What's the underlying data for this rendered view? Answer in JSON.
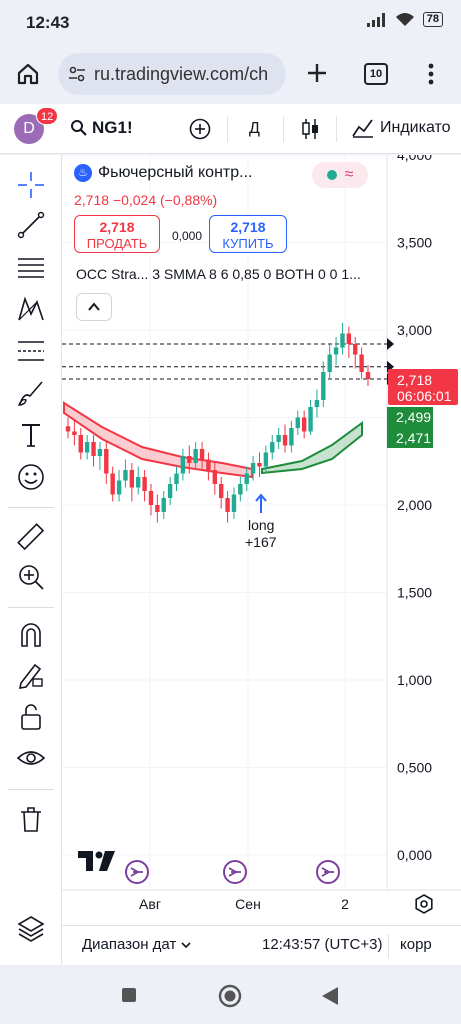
{
  "status": {
    "time": "12:43",
    "battery": "78"
  },
  "browser": {
    "url": "ru.tradingview.com/ch",
    "tab_count": "10"
  },
  "header": {
    "avatar_letter": "D",
    "notifications": "12",
    "symbol": "NG1!",
    "timeframe": "Д",
    "indicators_label": "Индикато"
  },
  "legend": {
    "title": "Фьючерсный контр...",
    "change": "2,718  −0,024 (−0,88%)",
    "sell_price": "2,718",
    "sell_label": "ПРОДАТЬ",
    "spread": "0,000",
    "buy_price": "2,718",
    "buy_label": "КУПИТЬ",
    "indicator": "OCC Stra...   3 SMMA 8 6 0,85 0 BOTH 0 0 1..."
  },
  "price_axis": {
    "ticks": [
      "4,000",
      "3,500",
      "3,000",
      "2,500",
      "2,000",
      "1,500",
      "1,000",
      "0,500",
      "0,000"
    ],
    "last_price": "2,718",
    "countdown": "06:06:01",
    "ind_upper": "2,499",
    "ind_lower": "2,471"
  },
  "time_axis": {
    "ticks": [
      "Авг",
      "Сен",
      "2"
    ]
  },
  "signal": {
    "label": "long",
    "value": "+167"
  },
  "bottom": {
    "date_range": "Диапазон дат",
    "clock": "12:43:57 (UTC+3)",
    "corr": "корр"
  },
  "colors": {
    "up": "#22ab94",
    "down": "#f23645",
    "accent": "#2962ff",
    "band_red": "#f23645",
    "band_green": "#1e8c3a"
  },
  "chart_data": {
    "type": "candlestick",
    "ylim": [
      0,
      4.0
    ],
    "y_ticks": [
      4.0,
      3.5,
      3.0,
      2.5,
      2.0,
      1.5,
      1.0,
      0.5,
      0.0
    ],
    "x_ticks": [
      "Авг",
      "Сен",
      "2"
    ],
    "candles": [
      [
        2.45,
        2.42,
        2.5,
        2.38
      ],
      [
        2.42,
        2.4,
        2.48,
        2.34
      ],
      [
        2.4,
        2.3,
        2.44,
        2.26
      ],
      [
        2.3,
        2.36,
        2.4,
        2.26
      ],
      [
        2.36,
        2.28,
        2.4,
        2.22
      ],
      [
        2.28,
        2.32,
        2.36,
        2.2
      ],
      [
        2.32,
        2.18,
        2.36,
        2.12
      ],
      [
        2.18,
        2.06,
        2.22,
        2.02
      ],
      [
        2.06,
        2.14,
        2.2,
        2.02
      ],
      [
        2.14,
        2.2,
        2.26,
        2.1
      ],
      [
        2.2,
        2.1,
        2.24,
        2.02
      ],
      [
        2.1,
        2.16,
        2.22,
        2.06
      ],
      [
        2.16,
        2.08,
        2.2,
        2.02
      ],
      [
        2.08,
        2.0,
        2.12,
        1.94
      ],
      [
        2.0,
        1.96,
        2.06,
        1.9
      ],
      [
        1.96,
        2.04,
        2.08,
        1.92
      ],
      [
        2.04,
        2.12,
        2.16,
        2.0
      ],
      [
        2.12,
        2.18,
        2.22,
        2.08
      ],
      [
        2.18,
        2.28,
        2.32,
        2.14
      ],
      [
        2.28,
        2.24,
        2.34,
        2.18
      ],
      [
        2.24,
        2.32,
        2.36,
        2.2
      ],
      [
        2.32,
        2.26,
        2.36,
        2.2
      ],
      [
        2.26,
        2.2,
        2.3,
        2.14
      ],
      [
        2.2,
        2.12,
        2.24,
        2.06
      ],
      [
        2.12,
        2.04,
        2.16,
        1.98
      ],
      [
        2.04,
        1.96,
        2.08,
        1.9
      ],
      [
        1.96,
        2.06,
        2.1,
        1.92
      ],
      [
        2.06,
        2.12,
        2.16,
        2.02
      ],
      [
        2.12,
        2.18,
        2.22,
        2.08
      ],
      [
        2.18,
        2.24,
        2.28,
        2.14
      ],
      [
        2.24,
        2.22,
        2.3,
        2.16
      ],
      [
        2.22,
        2.3,
        2.34,
        2.18
      ],
      [
        2.3,
        2.36,
        2.4,
        2.26
      ],
      [
        2.36,
        2.4,
        2.44,
        2.32
      ],
      [
        2.4,
        2.34,
        2.46,
        2.3
      ],
      [
        2.34,
        2.44,
        2.48,
        2.3
      ],
      [
        2.44,
        2.5,
        2.54,
        2.4
      ],
      [
        2.5,
        2.42,
        2.54,
        2.38
      ],
      [
        2.42,
        2.56,
        2.6,
        2.4
      ],
      [
        2.56,
        2.6,
        2.66,
        2.5
      ],
      [
        2.6,
        2.76,
        2.82,
        2.56
      ],
      [
        2.76,
        2.86,
        2.92,
        2.72
      ],
      [
        2.86,
        2.9,
        2.96,
        2.8
      ],
      [
        2.9,
        2.98,
        3.04,
        2.86
      ],
      [
        2.98,
        2.92,
        3.02,
        2.84
      ],
      [
        2.92,
        2.86,
        2.96,
        2.78
      ],
      [
        2.86,
        2.76,
        2.9,
        2.72
      ],
      [
        2.76,
        2.72,
        2.8,
        2.68
      ]
    ],
    "dashed_levels": [
      2.92,
      2.79,
      2.72
    ]
  }
}
